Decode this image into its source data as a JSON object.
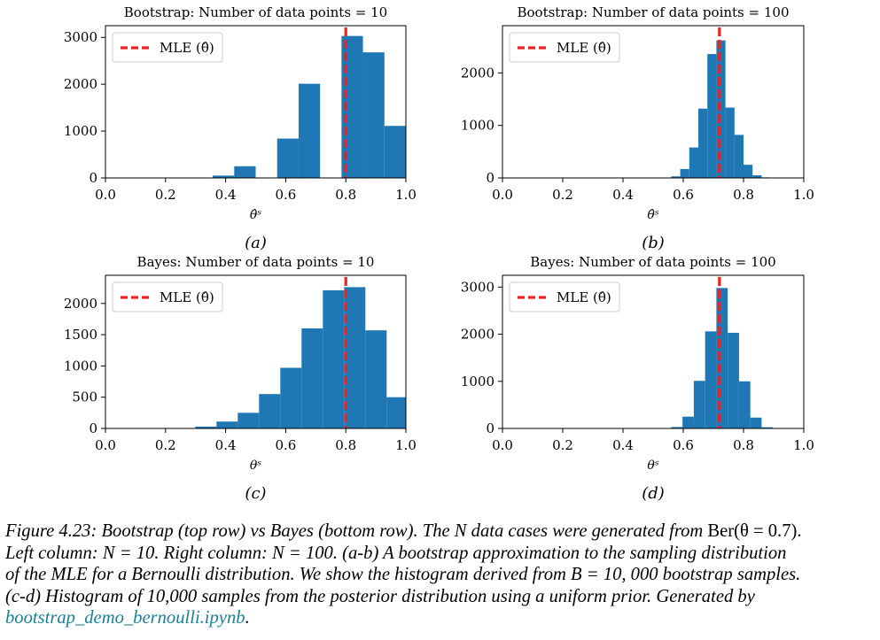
{
  "chart_data": [
    {
      "type": "bar",
      "title": "Bootstrap: Number of data points = 10",
      "xlabel": "θ̂ˢ",
      "panel_label": "(a)",
      "xlim": [
        0,
        1
      ],
      "ylim": [
        0,
        3250
      ],
      "x_ticks": [
        0.0,
        0.2,
        0.4,
        0.6,
        0.8,
        1.0
      ],
      "x_tick_labels": [
        "0.0",
        "0.2",
        "0.4",
        "0.6",
        "0.8",
        "1.0"
      ],
      "y_ticks": [
        0,
        1000,
        2000,
        3000
      ],
      "y_tick_labels": [
        "0",
        "1000",
        "2000",
        "3000"
      ],
      "bin_edges": [
        0.0,
        0.0714,
        0.1429,
        0.2143,
        0.2857,
        0.3571,
        0.4286,
        0.5,
        0.5714,
        0.6429,
        0.7143,
        0.7857,
        0.8571,
        0.9286,
        1.0
      ],
      "counts": [
        0,
        0,
        0,
        0,
        0,
        50,
        250,
        0,
        840,
        2010,
        0,
        3030,
        2680,
        1110
      ],
      "mle": 0.8,
      "legend": "MLE (θ̂)",
      "legend_position": "top-left",
      "bar_color": "#1f77b4",
      "mle_color": "#ee2222"
    },
    {
      "type": "bar",
      "title": "Bootstrap: Number of data points = 100",
      "xlabel": "θ̂ˢ",
      "panel_label": "(b)",
      "xlim": [
        0,
        1
      ],
      "ylim": [
        0,
        2900
      ],
      "x_ticks": [
        0.0,
        0.2,
        0.4,
        0.6,
        0.8,
        1.0
      ],
      "x_tick_labels": [
        "0.0",
        "0.2",
        "0.4",
        "0.6",
        "0.8",
        "1.0"
      ],
      "y_ticks": [
        0,
        1000,
        2000
      ],
      "y_tick_labels": [
        "0",
        "1000",
        "2000"
      ],
      "bin_edges": [
        0.56,
        0.59,
        0.62,
        0.65,
        0.68,
        0.71,
        0.74,
        0.77,
        0.8,
        0.83,
        0.86,
        0.89
      ],
      "counts": [
        30,
        170,
        580,
        1320,
        2360,
        2620,
        1340,
        820,
        250,
        50,
        10
      ],
      "mle": 0.72,
      "legend": "MLE (θ̂)",
      "legend_position": "top-left",
      "bar_color": "#1f77b4",
      "mle_color": "#ee2222"
    },
    {
      "type": "bar",
      "title": "Bayes: Number of data points = 10",
      "xlabel": "θˢ",
      "panel_label": "(c)",
      "xlim": [
        0,
        1
      ],
      "ylim": [
        0,
        2450
      ],
      "x_ticks": [
        0.0,
        0.2,
        0.4,
        0.6,
        0.8,
        1.0
      ],
      "x_tick_labels": [
        "0.0",
        "0.2",
        "0.4",
        "0.6",
        "0.8",
        "1.0"
      ],
      "y_ticks": [
        0,
        500,
        1000,
        1500,
        2000
      ],
      "y_tick_labels": [
        "0",
        "500",
        "1000",
        "1500",
        "2000"
      ],
      "bin_edges": [
        0.228,
        0.2988,
        0.3696,
        0.4404,
        0.5112,
        0.582,
        0.6528,
        0.7236,
        0.7944,
        0.8652,
        0.936,
        1.0
      ],
      "counts": [
        5,
        30,
        110,
        250,
        550,
        970,
        1600,
        2210,
        2260,
        1570,
        500
      ],
      "mle": 0.8,
      "legend": "MLE (θ̂)",
      "legend_position": "top-left",
      "bar_color": "#1f77b4",
      "mle_color": "#ee2222"
    },
    {
      "type": "bar",
      "title": "Bayes: Number of data points = 100",
      "xlabel": "θˢ",
      "panel_label": "(d)",
      "xlim": [
        0,
        1
      ],
      "ylim": [
        0,
        3250
      ],
      "x_ticks": [
        0.0,
        0.2,
        0.4,
        0.6,
        0.8,
        1.0
      ],
      "x_tick_labels": [
        "0.0",
        "0.2",
        "0.4",
        "0.6",
        "0.8",
        "1.0"
      ],
      "y_ticks": [
        0,
        1000,
        2000,
        3000
      ],
      "y_tick_labels": [
        "0",
        "1000",
        "2000",
        "3000"
      ],
      "bin_edges": [
        0.56,
        0.5975,
        0.635,
        0.6725,
        0.71,
        0.7475,
        0.785,
        0.8225,
        0.86,
        0.8975
      ],
      "counts": [
        30,
        250,
        1010,
        2060,
        2980,
        2030,
        1000,
        230,
        25
      ],
      "mle": 0.72,
      "legend": "MLE (θ̂)",
      "legend_position": "top-left",
      "bar_color": "#1f77b4",
      "mle_color": "#ee2222"
    }
  ],
  "caption": {
    "line1_a": "Figure 4.23: Bootstrap (top row) vs Bayes (bottom row).  The N  data cases were generated from ",
    "line1_b": "Ber(θ = 0.7).",
    "line2": "Left column: N = 10.  Right column: N = 100.  (a-b) A bootstrap approximation to the sampling distribution",
    "line3": "of the MLE for a Bernoulli distribution.  We show the histogram derived from B = 10, 000 bootstrap samples.",
    "line4": "(c-d) Histogram of 10,000 samples from the posterior distribution using a uniform prior.  Generated by",
    "link": "bootstrap_demo_bernoulli.ipynb",
    "line5_end": "."
  }
}
